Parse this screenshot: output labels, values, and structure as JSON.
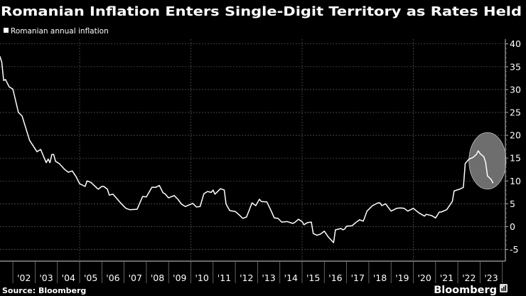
{
  "chart_data": {
    "type": "line",
    "title": "Romanian Inflation Enters Single-Digit Territory as Rates Held",
    "source": "Source: Bloomberg",
    "brand": "Bloomberg",
    "xlabel": "",
    "ylabel": "",
    "x_tick_labels": [
      "'02",
      "'03",
      "'04",
      "'05",
      "'06",
      "'07",
      "'08",
      "'09",
      "'10",
      "'11",
      "'12",
      "'13",
      "'14",
      "'15",
      "'16",
      "'17",
      "'18",
      "'19",
      "'20",
      "'21",
      "'22",
      "'23"
    ],
    "y_ticks": [
      40,
      35,
      30,
      25,
      20,
      15,
      10,
      5,
      0,
      -5
    ],
    "ylim": [
      -5,
      40
    ],
    "y_axis_side": "right",
    "grid": true,
    "legend_position": "top-left",
    "colors": {
      "background": "#000000",
      "line": "#ffffff",
      "grid": "#5a5a5a",
      "highlight": "#6e6e6e"
    },
    "highlight": {
      "x_range": [
        "2022-07",
        "2024-03"
      ],
      "y_range": [
        8.2,
        20.6
      ]
    },
    "series": [
      {
        "name": "Romanian annual inflation",
        "points": [
          [
            "2001-06",
            37.3
          ],
          [
            "2001-07",
            36.0
          ],
          [
            "2001-08",
            32.0
          ],
          [
            "2001-09",
            32.2
          ],
          [
            "2001-11",
            30.6
          ],
          [
            "2002-01",
            30.1
          ],
          [
            "2002-04",
            25.0
          ],
          [
            "2002-06",
            24.2
          ],
          [
            "2002-10",
            18.9
          ],
          [
            "2003-02",
            16.4
          ],
          [
            "2003-04",
            16.9
          ],
          [
            "2003-07",
            14.0
          ],
          [
            "2003-08",
            14.8
          ],
          [
            "2003-09",
            14.0
          ],
          [
            "2003-10",
            15.8
          ],
          [
            "2003-11",
            15.8
          ],
          [
            "2003-12",
            14.3
          ],
          [
            "2004-02",
            13.8
          ],
          [
            "2004-05",
            12.5
          ],
          [
            "2004-07",
            11.9
          ],
          [
            "2004-09",
            12.2
          ],
          [
            "2004-11",
            11.0
          ],
          [
            "2005-01",
            9.4
          ],
          [
            "2005-04",
            8.8
          ],
          [
            "2005-05",
            10.0
          ],
          [
            "2005-07",
            9.7
          ],
          [
            "2005-11",
            8.2
          ],
          [
            "2006-01",
            8.8
          ],
          [
            "2006-02",
            8.8
          ],
          [
            "2006-04",
            8.2
          ],
          [
            "2006-05",
            6.9
          ],
          [
            "2006-07",
            7.1
          ],
          [
            "2006-10",
            5.7
          ],
          [
            "2006-12",
            4.8
          ],
          [
            "2007-02",
            4.0
          ],
          [
            "2007-04",
            3.7
          ],
          [
            "2007-08",
            3.8
          ],
          [
            "2007-11",
            6.6
          ],
          [
            "2008-01",
            6.5
          ],
          [
            "2008-04",
            8.6
          ],
          [
            "2008-06",
            8.6
          ],
          [
            "2008-08",
            9.0
          ],
          [
            "2008-10",
            7.4
          ],
          [
            "2008-11",
            7.2
          ],
          [
            "2009-01",
            6.3
          ],
          [
            "2009-04",
            6.8
          ],
          [
            "2009-06",
            6.0
          ],
          [
            "2009-08",
            4.9
          ],
          [
            "2009-10",
            4.4
          ],
          [
            "2010-02",
            5.1
          ],
          [
            "2010-04",
            4.3
          ],
          [
            "2010-06",
            4.4
          ],
          [
            "2010-08",
            7.2
          ],
          [
            "2010-10",
            7.7
          ],
          [
            "2010-12",
            7.5
          ],
          [
            "2011-01",
            8.0
          ],
          [
            "2011-02",
            7.1
          ],
          [
            "2011-05",
            8.3
          ],
          [
            "2011-07",
            8.0
          ],
          [
            "2011-08",
            4.9
          ],
          [
            "2011-10",
            3.5
          ],
          [
            "2012-01",
            3.3
          ],
          [
            "2012-03",
            2.6
          ],
          [
            "2012-05",
            1.8
          ],
          [
            "2012-07",
            2.1
          ],
          [
            "2012-10",
            5.2
          ],
          [
            "2012-12",
            4.6
          ],
          [
            "2013-02",
            6.0
          ],
          [
            "2013-03",
            5.5
          ],
          [
            "2013-06",
            5.4
          ],
          [
            "2013-08",
            3.7
          ],
          [
            "2013-10",
            1.9
          ],
          [
            "2013-12",
            1.8
          ],
          [
            "2014-02",
            1.0
          ],
          [
            "2014-05",
            1.1
          ],
          [
            "2014-08",
            0.7
          ],
          [
            "2014-09",
            0.9
          ],
          [
            "2014-11",
            1.6
          ],
          [
            "2015-01",
            1.1
          ],
          [
            "2015-02",
            0.4
          ],
          [
            "2015-04",
            0.9
          ],
          [
            "2015-06",
            1.0
          ],
          [
            "2015-07",
            -1.5
          ],
          [
            "2015-09",
            -1.9
          ],
          [
            "2015-11",
            -1.6
          ],
          [
            "2016-01",
            -1.0
          ],
          [
            "2016-03",
            -2.2
          ],
          [
            "2016-06",
            -3.5
          ],
          [
            "2016-07",
            -0.7
          ],
          [
            "2016-10",
            -0.4
          ],
          [
            "2016-11",
            -0.7
          ],
          [
            "2016-12",
            -0.5
          ],
          [
            "2017-01",
            0.1
          ],
          [
            "2017-04",
            0.2
          ],
          [
            "2017-06",
            0.9
          ],
          [
            "2017-08",
            1.5
          ],
          [
            "2017-10",
            1.2
          ],
          [
            "2017-12",
            3.4
          ],
          [
            "2018-03",
            4.6
          ],
          [
            "2018-06",
            5.2
          ],
          [
            "2018-07",
            5.2
          ],
          [
            "2018-08",
            4.6
          ],
          [
            "2018-10",
            5.0
          ],
          [
            "2019-01",
            3.4
          ],
          [
            "2019-04",
            4.0
          ],
          [
            "2019-06",
            4.1
          ],
          [
            "2019-08",
            4.0
          ],
          [
            "2019-10",
            3.4
          ],
          [
            "2020-01",
            4.0
          ],
          [
            "2020-04",
            3.0
          ],
          [
            "2020-07",
            2.3
          ],
          [
            "2020-08",
            2.7
          ],
          [
            "2020-11",
            2.4
          ],
          [
            "2021-01",
            1.9
          ],
          [
            "2021-03",
            3.2
          ],
          [
            "2021-04",
            3.2
          ],
          [
            "2021-07",
            3.7
          ],
          [
            "2021-10",
            5.5
          ],
          [
            "2021-11",
            7.8
          ],
          [
            "2022-02",
            8.2
          ],
          [
            "2022-04",
            8.6
          ],
          [
            "2022-05",
            13.8
          ],
          [
            "2022-07",
            14.8
          ],
          [
            "2022-09",
            15.1
          ],
          [
            "2022-11",
            15.8
          ],
          [
            "2022-12",
            16.6
          ],
          [
            "2023-01",
            16.0
          ],
          [
            "2023-03",
            15.3
          ],
          [
            "2023-04",
            14.1
          ],
          [
            "2023-05",
            11.1
          ],
          [
            "2023-07",
            10.3
          ],
          [
            "2023-08",
            9.5
          ]
        ]
      }
    ]
  }
}
